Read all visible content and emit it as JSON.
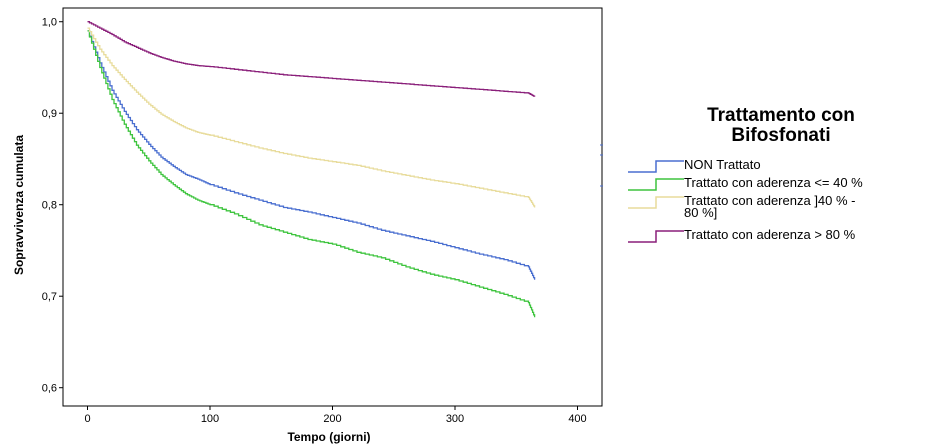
{
  "chart_data": {
    "type": "line",
    "title": "",
    "xlabel": "Tempo (giorni)",
    "ylabel": "Sopravvivenza cumulata",
    "xlim": [
      -20,
      420
    ],
    "ylim": [
      0.58,
      1.015
    ],
    "x_ticks": [
      0,
      100,
      200,
      300,
      400
    ],
    "x_tick_labels": [
      "0",
      "100",
      "200",
      "300",
      "400"
    ],
    "y_ticks": [
      0.6,
      0.7,
      0.8,
      0.9,
      1.0
    ],
    "y_tick_labels": [
      "0,6",
      "0,7",
      "0,8",
      "0,9",
      "1,0"
    ],
    "grid": false,
    "legend_placement": "right",
    "legend_title": "Trattamento con Bifosfonati",
    "series": [
      {
        "name": "NON Trattato",
        "color": "#4a6fd0",
        "x": [
          0,
          10,
          20,
          30,
          40,
          50,
          60,
          70,
          80,
          90,
          100,
          120,
          140,
          160,
          180,
          200,
          220,
          240,
          260,
          280,
          300,
          320,
          340,
          360,
          365
        ],
        "y": [
          0.99,
          0.955,
          0.925,
          0.902,
          0.882,
          0.866,
          0.852,
          0.842,
          0.833,
          0.828,
          0.822,
          0.813,
          0.805,
          0.797,
          0.792,
          0.786,
          0.78,
          0.772,
          0.766,
          0.76,
          0.753,
          0.746,
          0.74,
          0.732,
          0.718
        ]
      },
      {
        "name": "Trattato con aderenza <= 40 %",
        "color": "#3ec43e",
        "x": [
          0,
          10,
          20,
          30,
          40,
          50,
          60,
          70,
          80,
          90,
          100,
          120,
          140,
          160,
          180,
          200,
          220,
          240,
          260,
          280,
          300,
          320,
          340,
          360,
          365
        ],
        "y": [
          0.99,
          0.95,
          0.915,
          0.888,
          0.865,
          0.848,
          0.833,
          0.822,
          0.812,
          0.805,
          0.8,
          0.79,
          0.778,
          0.77,
          0.762,
          0.757,
          0.748,
          0.742,
          0.732,
          0.724,
          0.718,
          0.71,
          0.702,
          0.693,
          0.677
        ]
      },
      {
        "name": "Trattato con aderenza ]40 % - 80 %]",
        "color": "#e8dc9c",
        "x": [
          0,
          10,
          20,
          30,
          40,
          50,
          60,
          70,
          80,
          90,
          100,
          120,
          140,
          160,
          180,
          200,
          220,
          240,
          260,
          280,
          300,
          320,
          340,
          360,
          365
        ],
        "y": [
          0.993,
          0.97,
          0.952,
          0.937,
          0.923,
          0.91,
          0.899,
          0.891,
          0.884,
          0.879,
          0.876,
          0.869,
          0.862,
          0.856,
          0.851,
          0.847,
          0.843,
          0.837,
          0.832,
          0.827,
          0.823,
          0.818,
          0.813,
          0.808,
          0.797
        ]
      },
      {
        "name": "Trattato con aderenza > 80 %",
        "color": "#8a1f7a",
        "x": [
          0,
          10,
          20,
          30,
          40,
          50,
          60,
          70,
          80,
          90,
          100,
          120,
          140,
          160,
          180,
          200,
          220,
          240,
          260,
          280,
          300,
          320,
          340,
          360,
          365
        ],
        "y": [
          1.0,
          0.993,
          0.986,
          0.978,
          0.972,
          0.966,
          0.961,
          0.957,
          0.954,
          0.952,
          0.951,
          0.948,
          0.945,
          0.942,
          0.94,
          0.938,
          0.936,
          0.934,
          0.932,
          0.93,
          0.928,
          0.926,
          0.924,
          0.922,
          0.918
        ]
      }
    ]
  },
  "legend": {
    "title_line1": "Trattamento con",
    "title_line2": "Bifosfonati",
    "items": [
      {
        "label": "NON Trattato",
        "color": "#4a6fd0"
      },
      {
        "label": "Trattato con aderenza <= 40 %",
        "color": "#3ec43e"
      },
      {
        "label": "Trattato con aderenza ]40 % -\n80 %]",
        "color": "#e8dc9c"
      },
      {
        "label": "Trattato con aderenza > 80 %",
        "color": "#8a1f7a"
      }
    ]
  }
}
